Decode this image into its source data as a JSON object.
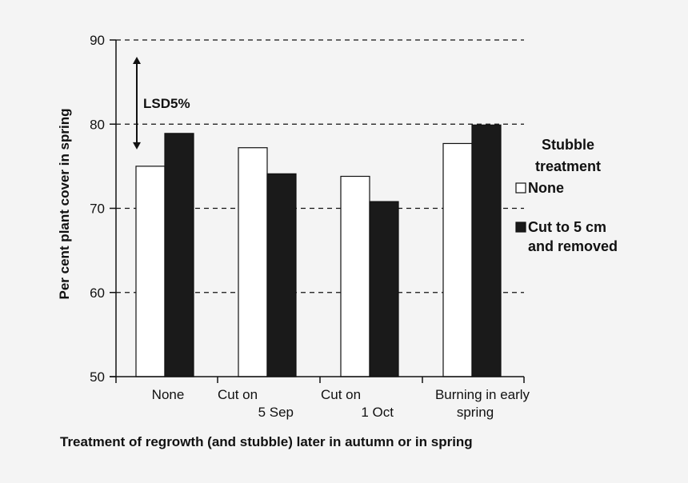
{
  "chart_data": {
    "type": "bar",
    "categories": [
      [
        "None"
      ],
      [
        "Cut on",
        "5 Sep"
      ],
      [
        "Cut on",
        "1 Oct"
      ],
      [
        "Burning in early",
        "spring"
      ]
    ],
    "series": [
      {
        "name": "None",
        "values": [
          75.0,
          77.2,
          73.8,
          77.7
        ],
        "color": "#ffffff"
      },
      {
        "name": "Cut to 5 cm and removed",
        "values": [
          78.9,
          74.1,
          70.8,
          79.9
        ],
        "color": "#1a1a1a"
      }
    ],
    "ylim": [
      50,
      90
    ],
    "yticks": [
      50,
      60,
      70,
      80,
      90
    ],
    "ylabel": "Per cent plant cover in spring",
    "xlabel": "Treatment of regrowth (and stubble) later in autumn or in spring",
    "grid": "dashed horizontal",
    "legend": {
      "title_lines": [
        "Stubble",
        "treatment"
      ],
      "entries": [
        {
          "lines": [
            "None"
          ]
        },
        {
          "lines": [
            "Cut to 5 cm",
            "and removed"
          ]
        }
      ]
    },
    "annotation": {
      "label": "LSD5%",
      "from": 77,
      "to": 88
    }
  }
}
